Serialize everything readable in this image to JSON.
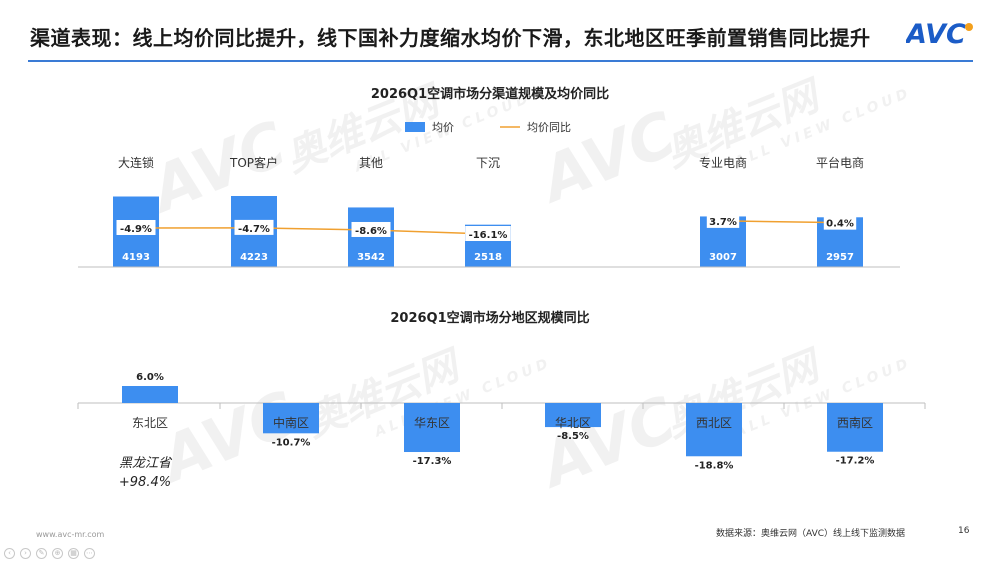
{
  "slide": {
    "title": "渠道表现：线上均价同比提升，线下国补力度缩水均价下滑，东北地区旺季前置销售同比提升",
    "logo_text": "AVC",
    "watermark_cn": "奥维云网",
    "watermark_en": "ALL VIEW CLOUD",
    "footer_url": "www.avc-mr.com",
    "footer_source": "数据来源：奥维云网（AVC）线上线下监测数据",
    "page_number": "16",
    "accent_color": "#3d8ef0",
    "line_color": "#f0a030",
    "title_rule_color": "#3a7bd5"
  },
  "chart_data": [
    {
      "type": "bar",
      "title": "2026Q1空调市场分渠道规模及均价同比",
      "legend": {
        "bar_label": "均价",
        "line_label": "均价同比",
        "placement": "top"
      },
      "categories": [
        "大连锁",
        "TOP客户",
        "其他",
        "下沉",
        "专业电商",
        "平台电商"
      ],
      "series": [
        {
          "name": "均价",
          "type": "bar",
          "values": [
            4193,
            4223,
            3542,
            2518,
            3007,
            2957
          ],
          "labels": [
            "4193",
            "4223",
            "3542",
            "2518",
            "3007",
            "2957"
          ]
        },
        {
          "name": "均价同比",
          "type": "line",
          "values": [
            -4.9,
            -4.7,
            -8.6,
            -16.1,
            3.7,
            0.4
          ],
          "labels": [
            "-4.9%",
            "-4.7%",
            "-8.6%",
            "-16.1%",
            "3.7%",
            "0.4%"
          ]
        }
      ],
      "groups": [
        [
          "大连锁",
          "TOP客户",
          "其他",
          "下沉"
        ],
        [
          "专业电商",
          "平台电商"
        ]
      ]
    },
    {
      "type": "bar",
      "title": "2026Q1空调市场分地区规模同比",
      "categories": [
        "东北区",
        "中南区",
        "华东区",
        "华北区",
        "西北区",
        "西南区"
      ],
      "values": [
        6.0,
        -10.7,
        -17.3,
        -8.5,
        -18.8,
        -17.2
      ],
      "labels": [
        "6.0%",
        "-10.7%",
        "-17.3%",
        "-8.5%",
        "-18.8%",
        "-17.2%"
      ],
      "annotation": {
        "region": "黑龙江省",
        "value": 98.4,
        "text": "+98.4%",
        "target": "东北区"
      }
    }
  ]
}
